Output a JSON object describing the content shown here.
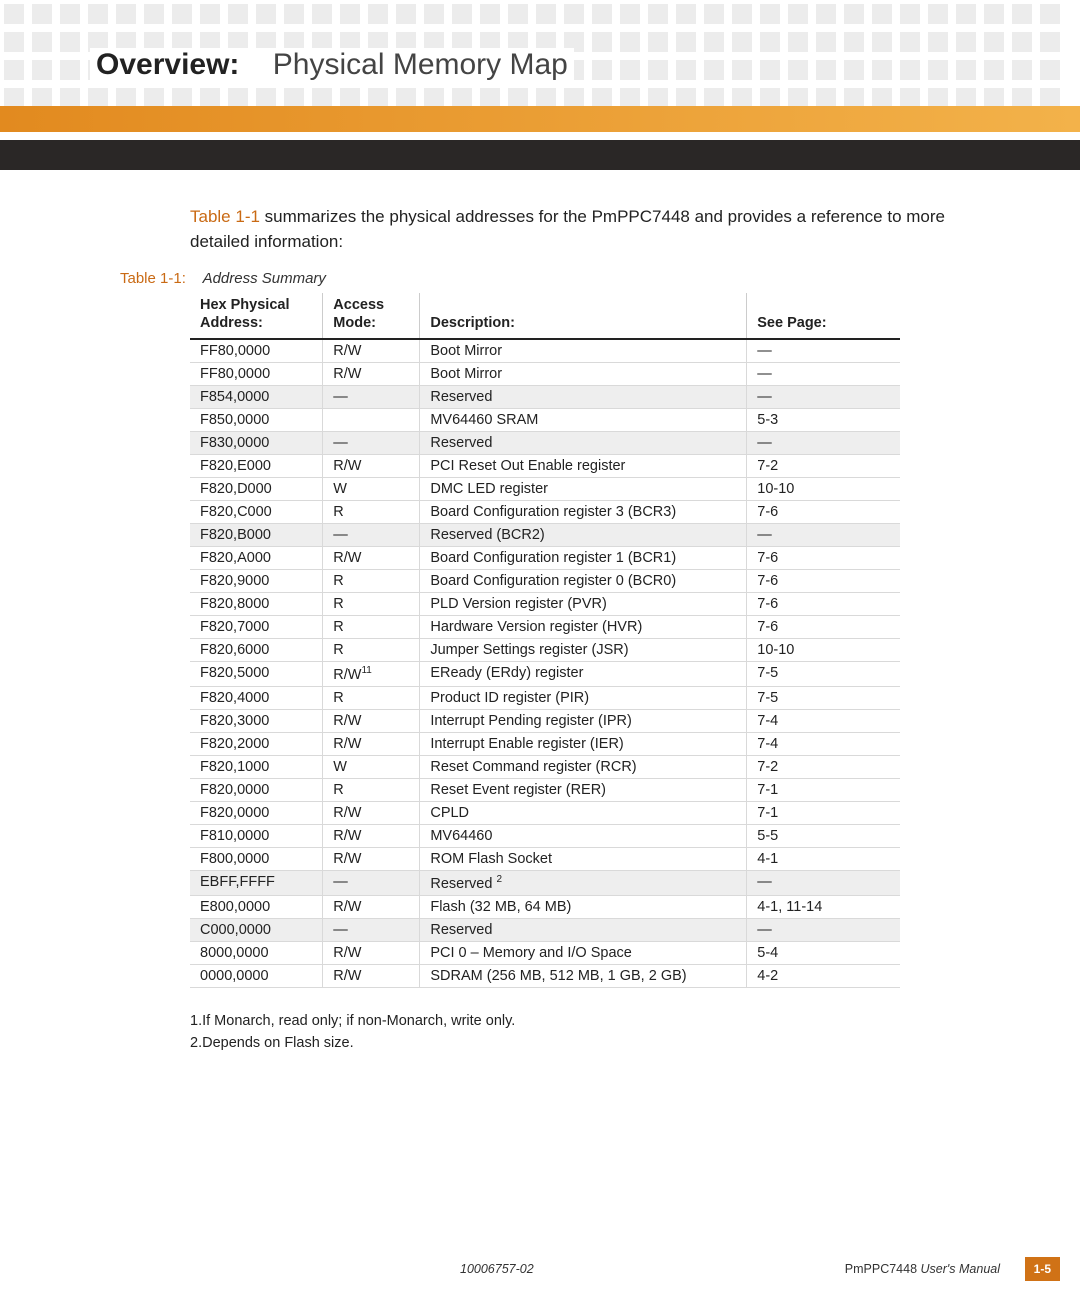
{
  "header": {
    "title_bold": "Overview:",
    "title_light": "Physical Memory Map"
  },
  "colors": {
    "orange_bar_start": "#e28a1f",
    "orange_bar_end": "#f3b24a",
    "dark_bar": "#2a2726",
    "ref_text": "#c96a14",
    "shaded_row": "#eeeeee",
    "page_box_bg": "#d07216"
  },
  "intro": {
    "ref": "Table 1-1",
    "text_after": " summarizes the physical addresses for the PmPPC7448 and provides a reference to more detailed information:"
  },
  "table_caption": {
    "label": "Table 1-1:",
    "text": "Address Summary"
  },
  "table": {
    "columns": [
      "Hex Physical Address:",
      "Access Mode:",
      "Description:",
      "See Page:"
    ],
    "rows": [
      {
        "addr": "FF80,0000",
        "mode": "R/W",
        "desc": "Boot Mirror",
        "page": "—",
        "shaded": false,
        "mode_sup": "",
        "desc_sup": ""
      },
      {
        "addr": "FF80,0000",
        "mode": "R/W",
        "desc": "Boot Mirror",
        "page": "—",
        "shaded": false,
        "mode_sup": "",
        "desc_sup": ""
      },
      {
        "addr": "F854,0000",
        "mode": "—",
        "desc": "Reserved",
        "page": "—",
        "shaded": true,
        "mode_sup": "",
        "desc_sup": ""
      },
      {
        "addr": "F850,0000",
        "mode": "",
        "desc": "MV64460 SRAM",
        "page": "5-3",
        "shaded": false,
        "mode_sup": "",
        "desc_sup": ""
      },
      {
        "addr": "F830,0000",
        "mode": "—",
        "desc": "Reserved",
        "page": "—",
        "shaded": true,
        "mode_sup": "",
        "desc_sup": ""
      },
      {
        "addr": "F820,E000",
        "mode": "R/W",
        "desc": "PCI Reset Out Enable register",
        "page": "7-2",
        "shaded": false,
        "mode_sup": "",
        "desc_sup": ""
      },
      {
        "addr": "F820,D000",
        "mode": "W",
        "desc": "DMC LED register",
        "page": "10-10",
        "shaded": false,
        "mode_sup": "",
        "desc_sup": ""
      },
      {
        "addr": "F820,C000",
        "mode": "R",
        "desc": "Board Configuration register 3 (BCR3)",
        "page": "7-6",
        "shaded": false,
        "mode_sup": "",
        "desc_sup": ""
      },
      {
        "addr": "F820,B000",
        "mode": "—",
        "desc": "Reserved (BCR2)",
        "page": "—",
        "shaded": true,
        "mode_sup": "",
        "desc_sup": ""
      },
      {
        "addr": "F820,A000",
        "mode": "R/W",
        "desc": "Board Configuration register 1 (BCR1)",
        "page": "7-6",
        "shaded": false,
        "mode_sup": "",
        "desc_sup": ""
      },
      {
        "addr": "F820,9000",
        "mode": "R",
        "desc": "Board Configuration register 0 (BCR0)",
        "page": "7-6",
        "shaded": false,
        "mode_sup": "",
        "desc_sup": ""
      },
      {
        "addr": "F820,8000",
        "mode": "R",
        "desc": "PLD Version register (PVR)",
        "page": "7-6",
        "shaded": false,
        "mode_sup": "",
        "desc_sup": ""
      },
      {
        "addr": "F820,7000",
        "mode": "R",
        "desc": "Hardware Version register (HVR)",
        "page": "7-6",
        "shaded": false,
        "mode_sup": "",
        "desc_sup": ""
      },
      {
        "addr": "F820,6000",
        "mode": "R",
        "desc": "Jumper Settings register (JSR)",
        "page": "10-10",
        "shaded": false,
        "mode_sup": "",
        "desc_sup": ""
      },
      {
        "addr": "F820,5000",
        "mode": "R/W",
        "desc": "EReady (ERdy) register",
        "page": "7-5",
        "shaded": false,
        "mode_sup": "11",
        "desc_sup": ""
      },
      {
        "addr": "F820,4000",
        "mode": "R",
        "desc": "Product ID register (PIR)",
        "page": "7-5",
        "shaded": false,
        "mode_sup": "",
        "desc_sup": ""
      },
      {
        "addr": "F820,3000",
        "mode": "R/W",
        "desc": "Interrupt Pending register (IPR)",
        "page": "7-4",
        "shaded": false,
        "mode_sup": "",
        "desc_sup": ""
      },
      {
        "addr": "F820,2000",
        "mode": "R/W",
        "desc": "Interrupt Enable register (IER)",
        "page": "7-4",
        "shaded": false,
        "mode_sup": "",
        "desc_sup": ""
      },
      {
        "addr": "F820,1000",
        "mode": "W",
        "desc": "Reset Command register (RCR)",
        "page": "7-2",
        "shaded": false,
        "mode_sup": "",
        "desc_sup": ""
      },
      {
        "addr": "F820,0000",
        "mode": "R",
        "desc": "Reset Event register (RER)",
        "page": "7-1",
        "shaded": false,
        "mode_sup": "",
        "desc_sup": ""
      },
      {
        "addr": "F820,0000",
        "mode": "R/W",
        "desc": "CPLD",
        "page": "7-1",
        "shaded": false,
        "mode_sup": "",
        "desc_sup": ""
      },
      {
        "addr": "F810,0000",
        "mode": "R/W",
        "desc": "MV64460",
        "page": "5-5",
        "shaded": false,
        "mode_sup": "",
        "desc_sup": ""
      },
      {
        "addr": "F800,0000",
        "mode": "R/W",
        "desc": "ROM Flash Socket",
        "page": "4-1",
        "shaded": false,
        "mode_sup": "",
        "desc_sup": ""
      },
      {
        "addr": "EBFF,FFFF",
        "mode": "—",
        "desc": "Reserved ",
        "page": "—",
        "shaded": true,
        "mode_sup": "",
        "desc_sup": "2"
      },
      {
        "addr": "E800,0000",
        "mode": "R/W",
        "desc": "Flash (32 MB, 64 MB)",
        "page": "4-1, 11-14",
        "shaded": false,
        "mode_sup": "",
        "desc_sup": ""
      },
      {
        "addr": "C000,0000",
        "mode": "—",
        "desc": "Reserved",
        "page": "—",
        "shaded": true,
        "mode_sup": "",
        "desc_sup": ""
      },
      {
        "addr": "8000,0000",
        "mode": "R/W",
        "desc": "PCI 0 – Memory and I/O Space",
        "page": "5-4",
        "shaded": false,
        "mode_sup": "",
        "desc_sup": ""
      },
      {
        "addr": "0000,0000",
        "mode": "R/W",
        "desc": "SDRAM (256 MB, 512 MB, 1 GB, 2 GB)",
        "page": "4-2",
        "shaded": false,
        "mode_sup": "",
        "desc_sup": ""
      }
    ]
  },
  "notes": [
    "1.If Monarch, read only; if non-Monarch, write only.",
    "2.Depends on Flash size."
  ],
  "footer": {
    "docnum": "10006757-02",
    "manual_prefix": "PmPPC7448 ",
    "manual_italic": "User's Manual",
    "page": "1-5"
  }
}
